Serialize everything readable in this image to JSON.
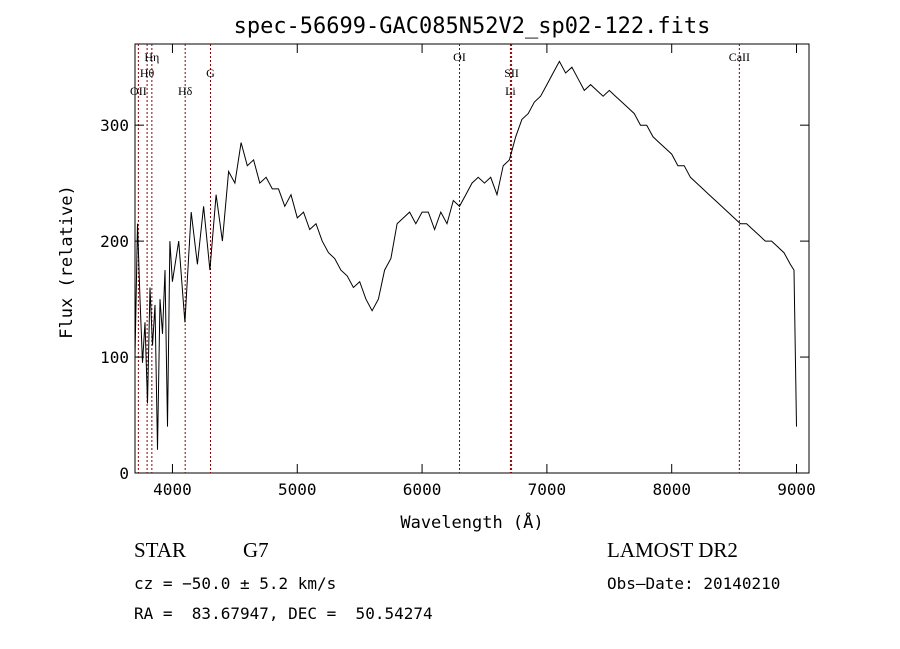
{
  "chart_data": {
    "type": "line",
    "title": "spec-56699-GAC085N52V2_sp02-122.fits",
    "xlabel": "Wavelength (Å)",
    "ylabel": "Flux (relative)",
    "xlim": [
      3700,
      9100
    ],
    "ylim": [
      0,
      370
    ],
    "x_ticks": [
      4000,
      5000,
      6000,
      7000,
      8000,
      9000
    ],
    "y_ticks": [
      0,
      100,
      200,
      300
    ],
    "grid": false,
    "series": [
      {
        "x": [
          3700,
          3720,
          3740,
          3760,
          3780,
          3800,
          3820,
          3840,
          3860,
          3880,
          3900,
          3920,
          3940,
          3960,
          3980,
          4000,
          4050,
          4100,
          4150,
          4200,
          4250,
          4300,
          4350,
          4400,
          4450,
          4500,
          4550,
          4600,
          4650,
          4700,
          4750,
          4800,
          4850,
          4900,
          4950,
          5000,
          5050,
          5100,
          5150,
          5200,
          5250,
          5300,
          5350,
          5400,
          5450,
          5500,
          5550,
          5600,
          5650,
          5700,
          5750,
          5800,
          5850,
          5900,
          5950,
          6000,
          6050,
          6100,
          6150,
          6200,
          6250,
          6300,
          6350,
          6400,
          6450,
          6500,
          6550,
          6600,
          6650,
          6700,
          6750,
          6800,
          6850,
          6900,
          6950,
          7000,
          7050,
          7100,
          7150,
          7200,
          7250,
          7300,
          7350,
          7400,
          7450,
          7500,
          7550,
          7600,
          7650,
          7700,
          7750,
          7800,
          7850,
          7900,
          7950,
          8000,
          8050,
          8100,
          8150,
          8200,
          8250,
          8300,
          8350,
          8400,
          8450,
          8500,
          8550,
          8600,
          8650,
          8700,
          8750,
          8800,
          8850,
          8900,
          8950,
          8980,
          9000
        ],
        "y": [
          100,
          215,
          150,
          95,
          130,
          60,
          160,
          110,
          145,
          20,
          150,
          120,
          175,
          40,
          200,
          165,
          200,
          130,
          225,
          180,
          230,
          175,
          240,
          200,
          260,
          250,
          285,
          265,
          270,
          250,
          255,
          245,
          245,
          230,
          240,
          220,
          225,
          210,
          215,
          200,
          190,
          185,
          175,
          170,
          160,
          165,
          150,
          140,
          150,
          175,
          185,
          215,
          220,
          225,
          215,
          225,
          225,
          210,
          225,
          215,
          235,
          230,
          240,
          250,
          255,
          250,
          255,
          240,
          265,
          270,
          290,
          305,
          310,
          320,
          325,
          335,
          345,
          355,
          345,
          350,
          340,
          330,
          335,
          330,
          325,
          330,
          325,
          320,
          315,
          310,
          300,
          300,
          290,
          285,
          280,
          275,
          265,
          265,
          255,
          250,
          245,
          240,
          235,
          230,
          225,
          220,
          215,
          215,
          210,
          205,
          200,
          200,
          195,
          190,
          180,
          175,
          40
        ]
      }
    ],
    "lines": [
      {
        "label": "OII",
        "x": 3727
      },
      {
        "label": "Hθ",
        "x": 3797
      },
      {
        "label": "Hη",
        "x": 3835
      },
      {
        "label": "Hδ",
        "x": 4102
      },
      {
        "label": "G",
        "x": 4305
      },
      {
        "label": "OI",
        "x": 6300
      },
      {
        "label": "SII",
        "x": 6717
      },
      {
        "label": "Li",
        "x": 6708
      },
      {
        "label": "CaII",
        "x": 8542
      }
    ],
    "line_color": "#8b0000"
  },
  "info": {
    "class": "STAR",
    "subclass": "G7",
    "survey": "LAMOST DR2",
    "cz": "cz = −50.0 ± 5.2 km/s",
    "obs_date": "Obs–Date: 20140210",
    "coords": "RA =  83.67947, DEC =  50.54274"
  }
}
